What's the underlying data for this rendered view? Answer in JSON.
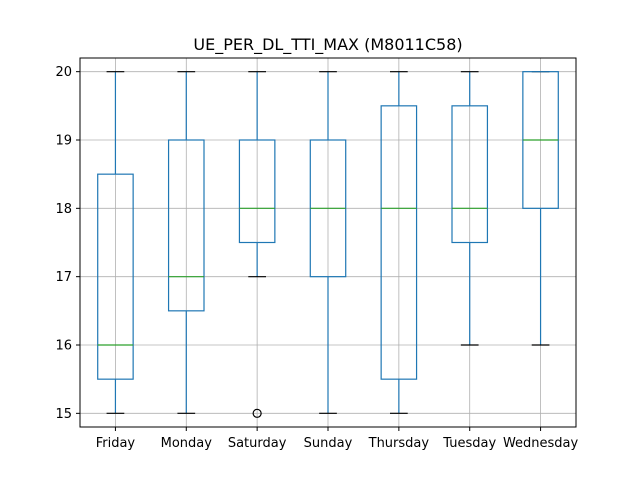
{
  "chart_data": {
    "type": "box",
    "title": "UE_PER_DL_TTI_MAX (M8011C58)",
    "xlabel": "",
    "ylabel": "",
    "ylim": [
      14.8,
      20.2
    ],
    "yticks": [
      15,
      16,
      17,
      18,
      19,
      20
    ],
    "grid": true,
    "categories": [
      "Friday",
      "Monday",
      "Saturday",
      "Sunday",
      "Thursday",
      "Tuesday",
      "Wednesday"
    ],
    "boxes": [
      {
        "category": "Friday",
        "whislo": 15,
        "q1": 15.5,
        "med": 16,
        "q3": 18.5,
        "whishi": 20,
        "fliers": []
      },
      {
        "category": "Monday",
        "whislo": 15,
        "q1": 16.5,
        "med": 17,
        "q3": 19,
        "whishi": 20,
        "fliers": []
      },
      {
        "category": "Saturday",
        "whislo": 17,
        "q1": 17.5,
        "med": 18,
        "q3": 19,
        "whishi": 20,
        "fliers": [
          15
        ]
      },
      {
        "category": "Sunday",
        "whislo": 15,
        "q1": 17,
        "med": 18,
        "q3": 19,
        "whishi": 20,
        "fliers": []
      },
      {
        "category": "Thursday",
        "whislo": 15,
        "q1": 15.5,
        "med": 18,
        "q3": 19.5,
        "whishi": 20,
        "fliers": []
      },
      {
        "category": "Tuesday",
        "whislo": 16,
        "q1": 17.5,
        "med": 18,
        "q3": 19.5,
        "whishi": 20,
        "fliers": []
      },
      {
        "category": "Wednesday",
        "whislo": 16,
        "q1": 18,
        "med": 19,
        "q3": 20,
        "whishi": 20,
        "fliers": []
      }
    ],
    "colors": {
      "box": "#1f77b4",
      "median": "#2ca02c",
      "cap": "#000000",
      "grid": "#b0b0b0"
    }
  }
}
